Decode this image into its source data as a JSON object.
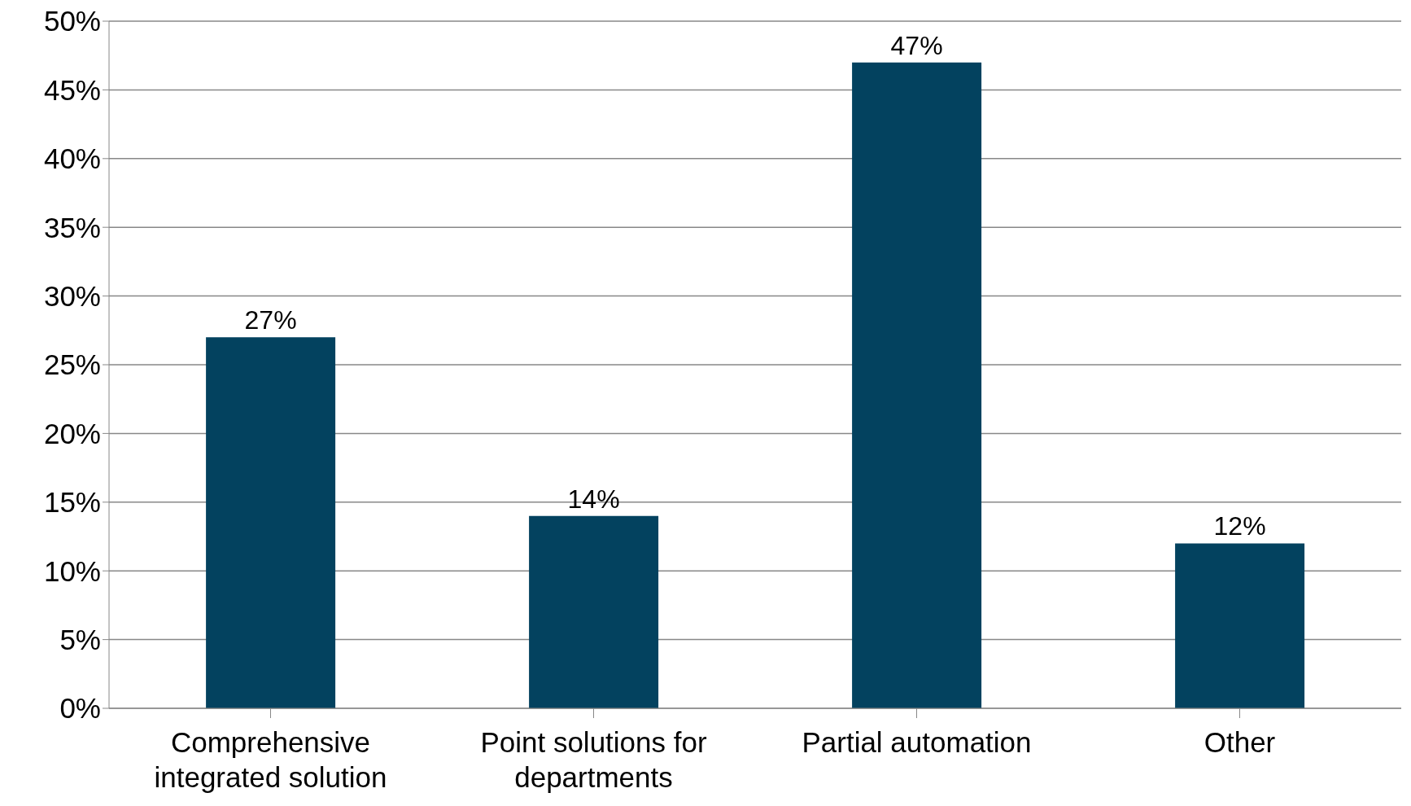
{
  "chart_data": {
    "type": "bar",
    "categories": [
      "Comprehensive integrated solution",
      "Point solutions for departments",
      "Partial automation",
      "Other"
    ],
    "values": [
      27,
      14,
      47,
      12
    ],
    "value_labels": [
      "27%",
      "14%",
      "47%",
      "12%"
    ],
    "color": "#03425f",
    "ylim": [
      0,
      50
    ],
    "yticks": [
      {
        "value": 0,
        "label": "0%"
      },
      {
        "value": 5,
        "label": "5%"
      },
      {
        "value": 10,
        "label": "10%"
      },
      {
        "value": 15,
        "label": "15%"
      },
      {
        "value": 20,
        "label": "20%"
      },
      {
        "value": 25,
        "label": "25%"
      },
      {
        "value": 30,
        "label": "30%"
      },
      {
        "value": 35,
        "label": "35%"
      },
      {
        "value": 40,
        "label": "40%"
      },
      {
        "value": 45,
        "label": "45%"
      },
      {
        "value": 50,
        "label": "50%"
      }
    ],
    "grid": "y",
    "legend": false
  }
}
